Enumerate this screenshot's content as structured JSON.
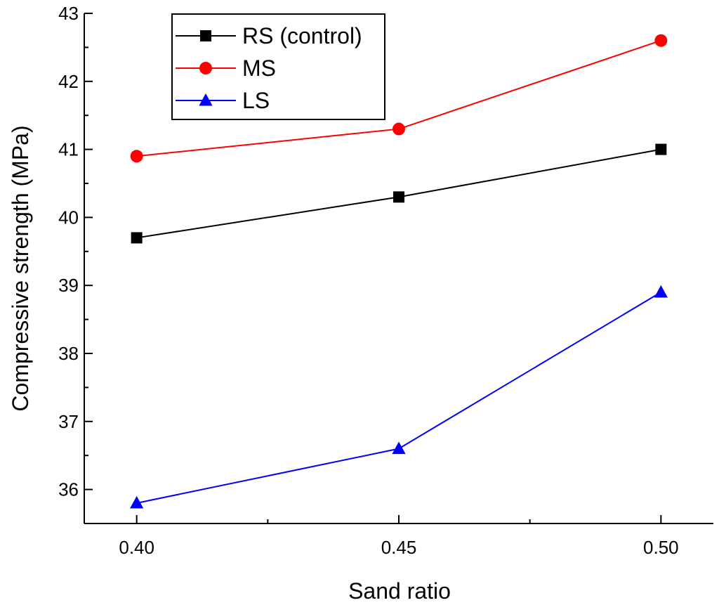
{
  "chart_data": {
    "type": "line",
    "title": "",
    "xlabel": "Sand ratio",
    "ylabel": "Compressive strength (MPa)",
    "x": [
      0.4,
      0.45,
      0.5
    ],
    "x_tick_labels": [
      "0.40",
      "0.45",
      "0.50"
    ],
    "xlim": [
      0.39,
      0.51
    ],
    "ylim": [
      35.5,
      43
    ],
    "y_ticks": [
      36,
      37,
      38,
      39,
      40,
      41,
      42,
      43
    ],
    "y_tick_labels": [
      "36",
      "37",
      "38",
      "39",
      "40",
      "41",
      "42",
      "43"
    ],
    "grid": false,
    "legend_position": "top-left",
    "series": [
      {
        "name": "RS (control)",
        "color": "#000000",
        "marker": "square",
        "values": [
          39.7,
          40.3,
          41.0
        ]
      },
      {
        "name": "MS",
        "color": "#ff0000",
        "marker": "circle",
        "values": [
          40.9,
          41.3,
          42.6
        ]
      },
      {
        "name": "LS",
        "color": "#0000ff",
        "marker": "triangle",
        "values": [
          35.8,
          36.6,
          38.9
        ]
      }
    ]
  }
}
